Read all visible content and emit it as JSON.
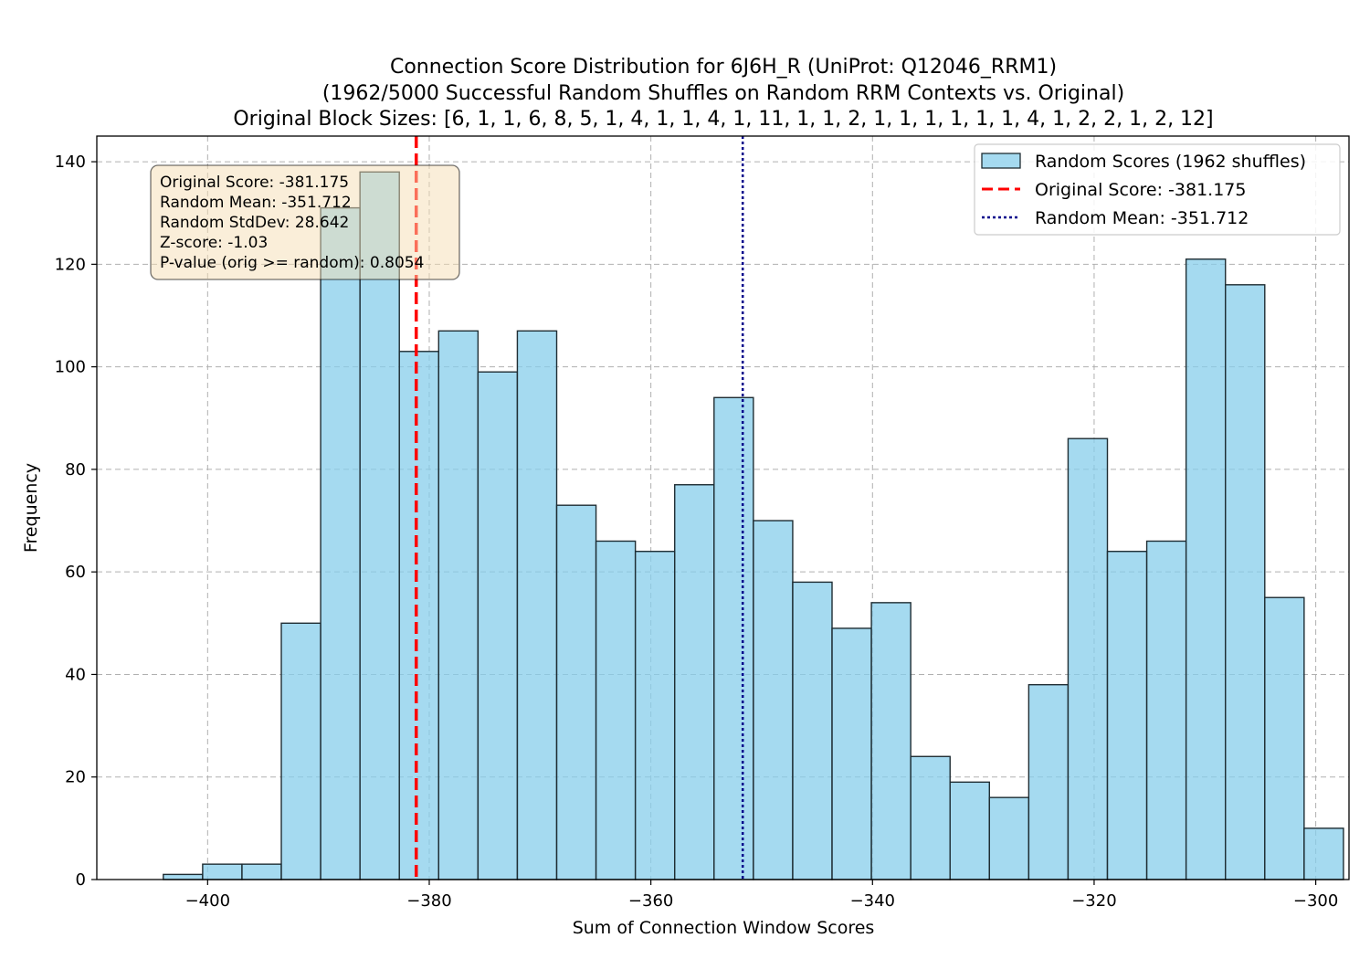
{
  "chart_data": {
    "type": "bar",
    "title_lines": [
      "Connection Score Distribution for 6J6H_R (UniProt: Q12046_RRM1)",
      "(1962/5000 Successful Random Shuffles on Random RRM Contexts vs. Original)",
      "Original Block Sizes: [6, 1, 1, 6, 8, 5, 1, 4, 1, 1, 4, 1, 11, 1, 1, 2, 1, 1, 1, 1, 1, 1, 4, 1, 2, 2, 1, 2, 12]"
    ],
    "xlabel": "Sum of Connection Window Scores",
    "ylabel": "Frequency",
    "xlim": [
      -410,
      -297
    ],
    "ylim": [
      0,
      145
    ],
    "xticks": [
      -400,
      -380,
      -360,
      -340,
      -320,
      -300
    ],
    "xtick_labels": [
      "−400",
      "−380",
      "−360",
      "−340",
      "−320",
      "−300"
    ],
    "yticks": [
      0,
      20,
      40,
      60,
      80,
      100,
      120,
      140
    ],
    "ytick_labels": [
      "0",
      "20",
      "40",
      "60",
      "80",
      "100",
      "120",
      "140"
    ],
    "grid": true,
    "bin_start": -404.0,
    "bin_width": 3.55,
    "values": [
      1,
      3,
      3,
      50,
      131,
      138,
      103,
      107,
      99,
      107,
      73,
      66,
      64,
      77,
      94,
      70,
      58,
      49,
      54,
      24,
      19,
      16,
      38,
      86,
      64,
      66,
      121,
      116,
      55,
      10
    ],
    "bar_color": "#87ceeb",
    "edge_color": "#1f2d33",
    "vlines": [
      {
        "x": -381.175,
        "color": "#ff0000",
        "style": "dashed"
      },
      {
        "x": -351.712,
        "color": "#00008b",
        "style": "dotted"
      }
    ],
    "legend": {
      "placement": "top-right",
      "entries": [
        "Random Scores (1962 shuffles)",
        "Original Score: -381.175",
        "Random Mean: -351.712"
      ]
    },
    "stats_box": {
      "lines": [
        "Original Score: -381.175",
        "Random Mean: -351.712",
        "Random StdDev: 28.642",
        "Z-score: -1.03",
        "P-value (orig >= random): 0.8054"
      ],
      "background": "#f5deb3"
    }
  }
}
